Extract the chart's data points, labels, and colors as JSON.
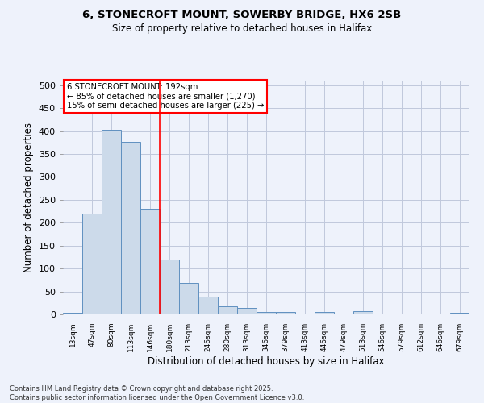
{
  "title_line1": "6, STONECROFT MOUNT, SOWERBY BRIDGE, HX6 2SB",
  "title_line2": "Size of property relative to detached houses in Halifax",
  "xlabel": "Distribution of detached houses by size in Halifax",
  "ylabel": "Number of detached properties",
  "categories": [
    "13sqm",
    "47sqm",
    "80sqm",
    "113sqm",
    "146sqm",
    "180sqm",
    "213sqm",
    "246sqm",
    "280sqm",
    "313sqm",
    "346sqm",
    "379sqm",
    "413sqm",
    "446sqm",
    "479sqm",
    "513sqm",
    "546sqm",
    "579sqm",
    "612sqm",
    "646sqm",
    "679sqm"
  ],
  "values": [
    3,
    220,
    403,
    376,
    230,
    120,
    68,
    39,
    17,
    14,
    6,
    6,
    0,
    6,
    0,
    7,
    0,
    0,
    0,
    0,
    3
  ],
  "bar_color": "#ccdaea",
  "bar_edge_color": "#6090c0",
  "annotation_text": "6 STONECROFT MOUNT: 192sqm\n← 85% of detached houses are smaller (1,270)\n15% of semi-detached houses are larger (225) →",
  "annotation_box_color": "white",
  "annotation_box_edge_color": "red",
  "vline_x": 4.5,
  "vline_color": "red",
  "ylim": [
    0,
    510
  ],
  "yticks": [
    0,
    50,
    100,
    150,
    200,
    250,
    300,
    350,
    400,
    450,
    500
  ],
  "background_color": "#eef2fb",
  "grid_color": "#c0c8dc",
  "footnote": "Contains HM Land Registry data © Crown copyright and database right 2025.\nContains public sector information licensed under the Open Government Licence v3.0."
}
